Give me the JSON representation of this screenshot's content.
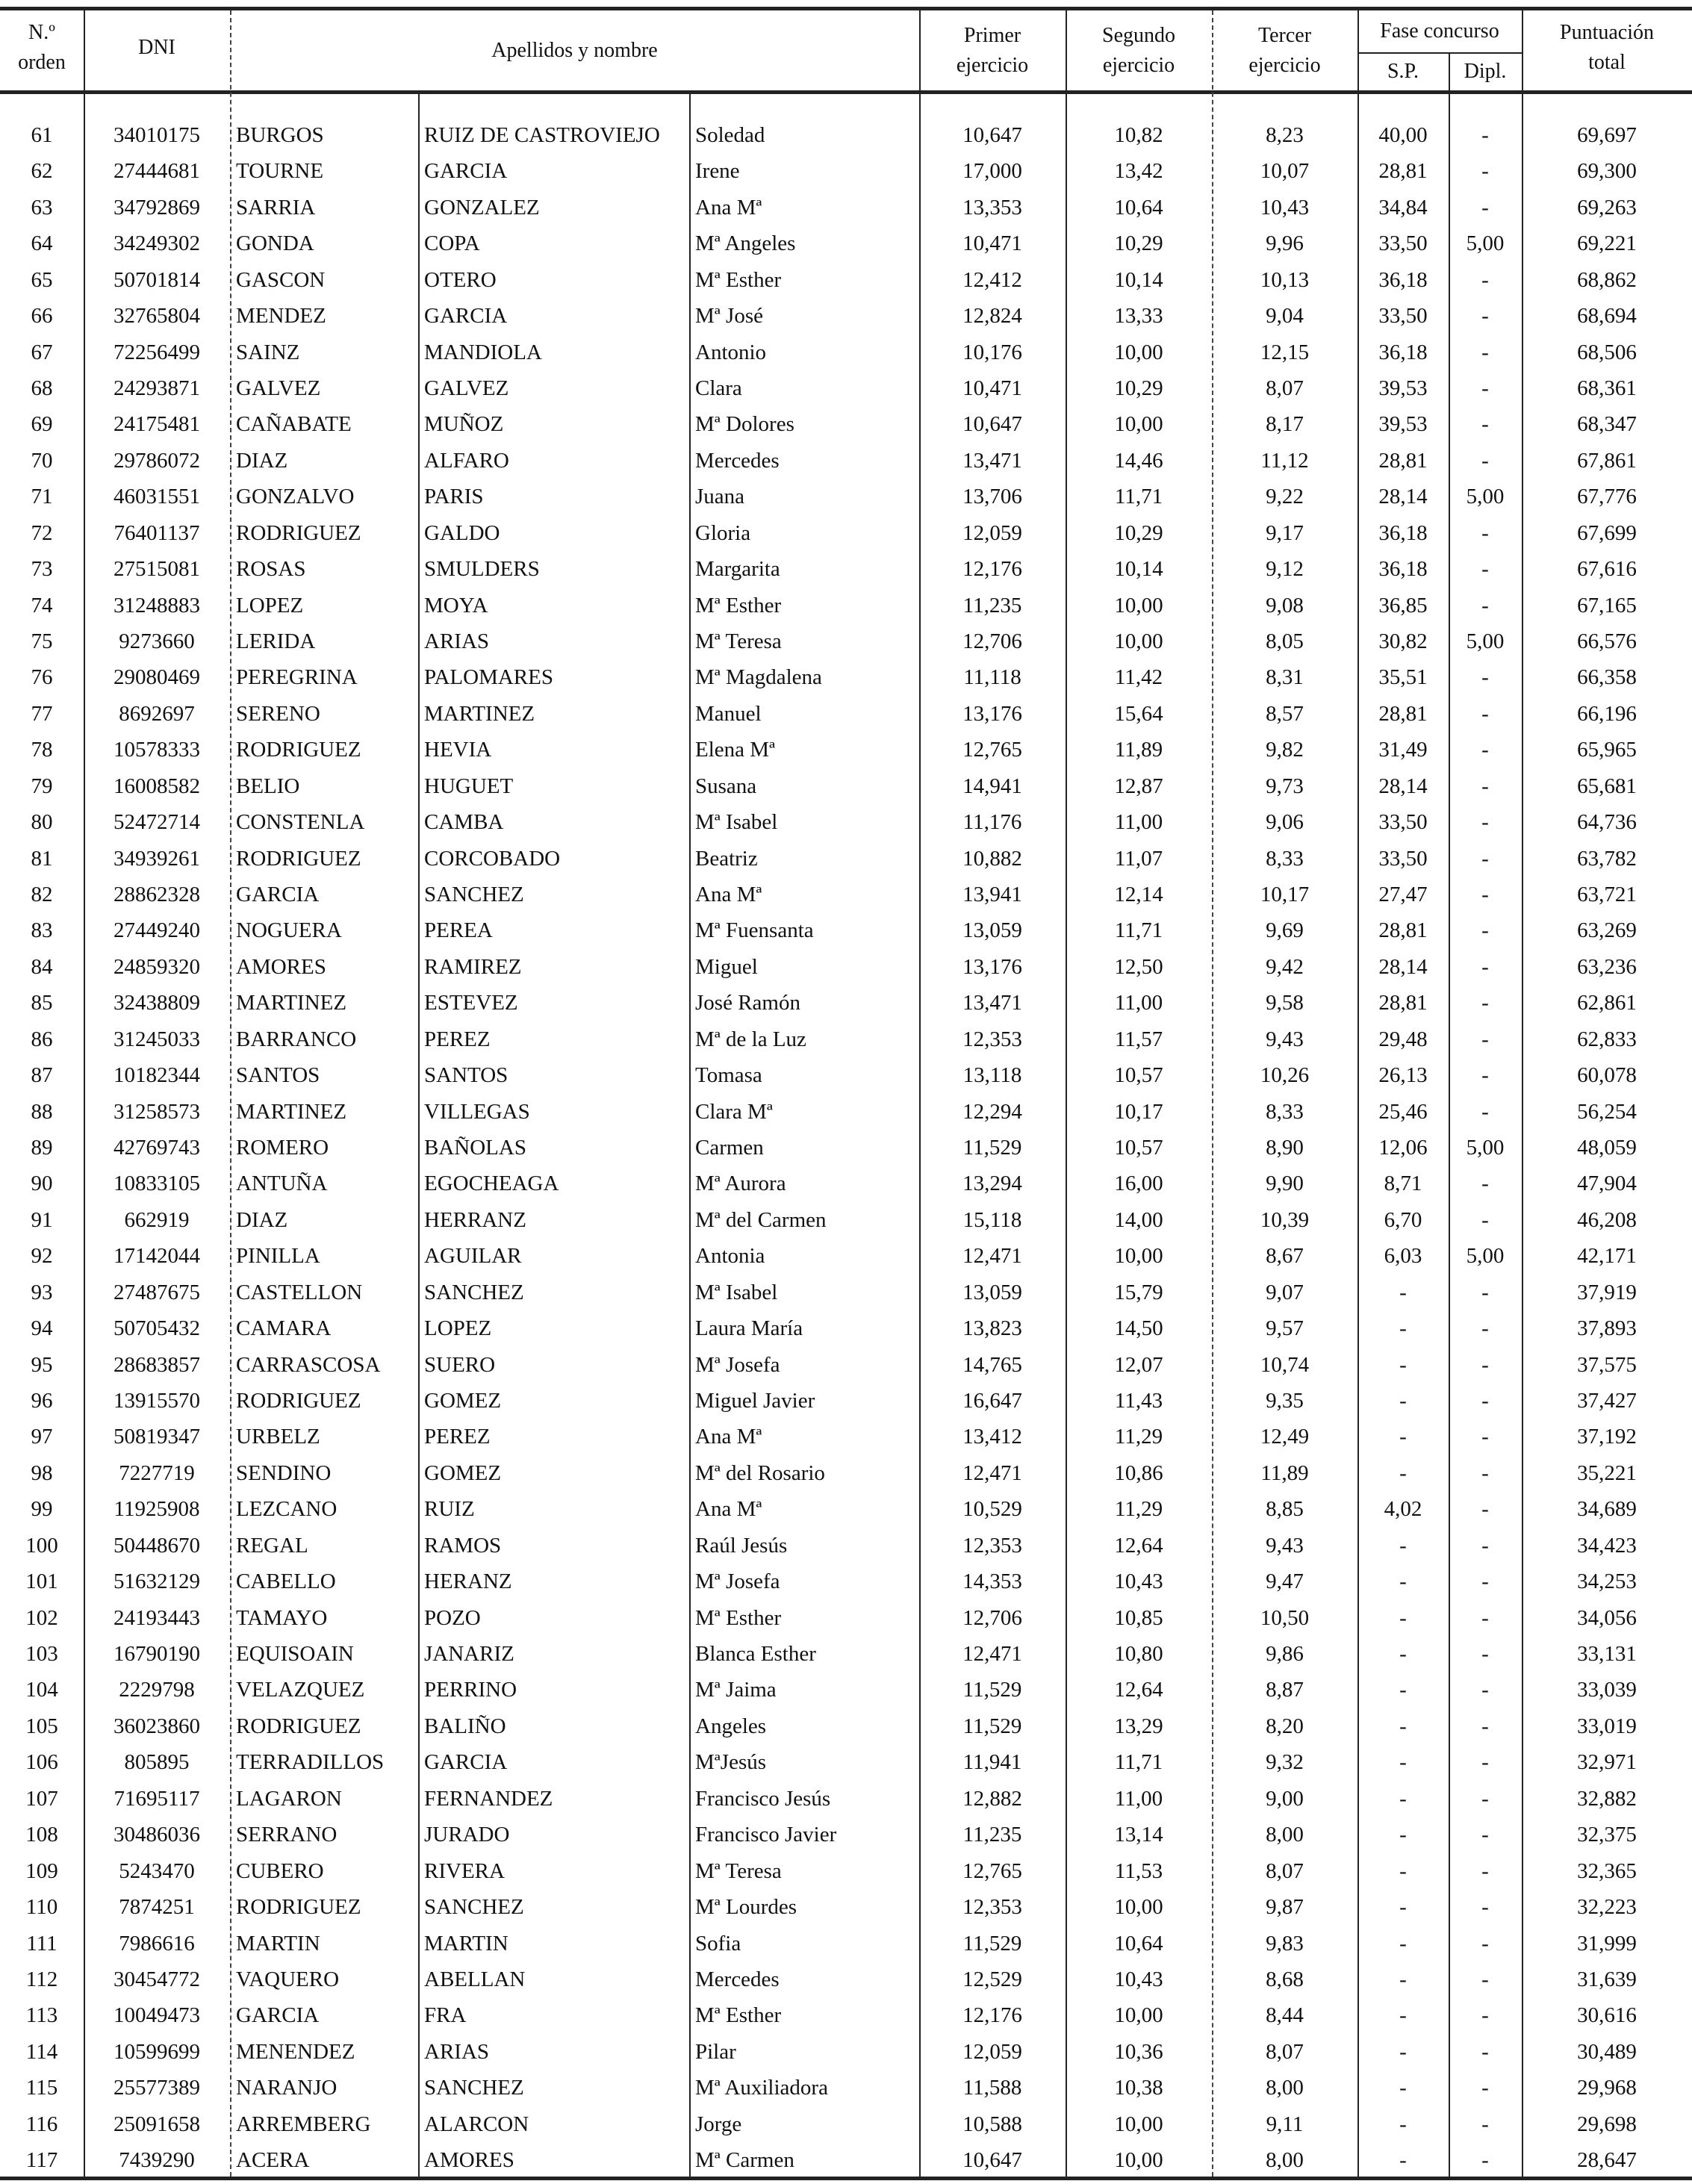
{
  "header": {
    "orden": [
      "N.º",
      "orden"
    ],
    "dni": "DNI",
    "nombre": "Apellidos y nombre",
    "primer": [
      "Primer",
      "ejercicio"
    ],
    "segundo": [
      "Segundo",
      "ejercicio"
    ],
    "tercer": [
      "Tercer",
      "ejercicio"
    ],
    "fase": "Fase concurso",
    "sp": "S.P.",
    "dipl": "Dipl.",
    "total": [
      "Puntuación",
      "total"
    ]
  },
  "rows": [
    [
      "61",
      "34010175",
      "BURGOS",
      "RUIZ DE CASTROVIEJO",
      "Soledad",
      "10,647",
      "10,82",
      "8,23",
      "40,00",
      "-",
      "69,697"
    ],
    [
      "62",
      "27444681",
      "TOURNE",
      "GARCIA",
      "Irene",
      "17,000",
      "13,42",
      "10,07",
      "28,81",
      "-",
      "69,300"
    ],
    [
      "63",
      "34792869",
      "SARRIA",
      "GONZALEZ",
      "Ana Mª",
      "13,353",
      "10,64",
      "10,43",
      "34,84",
      "-",
      "69,263"
    ],
    [
      "64",
      "34249302",
      "GONDA",
      "COPA",
      "Mª Angeles",
      "10,471",
      "10,29",
      "9,96",
      "33,50",
      "5,00",
      "69,221"
    ],
    [
      "65",
      "50701814",
      "GASCON",
      "OTERO",
      "Mª Esther",
      "12,412",
      "10,14",
      "10,13",
      "36,18",
      "-",
      "68,862"
    ],
    [
      "66",
      "32765804",
      "MENDEZ",
      "GARCIA",
      "Mª José",
      "12,824",
      "13,33",
      "9,04",
      "33,50",
      "-",
      "68,694"
    ],
    [
      "67",
      "72256499",
      "SAINZ",
      "MANDIOLA",
      "Antonio",
      "10,176",
      "10,00",
      "12,15",
      "36,18",
      "-",
      "68,506"
    ],
    [
      "68",
      "24293871",
      "GALVEZ",
      "GALVEZ",
      "Clara",
      "10,471",
      "10,29",
      "8,07",
      "39,53",
      "-",
      "68,361"
    ],
    [
      "69",
      "24175481",
      "CAÑABATE",
      "MUÑOZ",
      "Mª Dolores",
      "10,647",
      "10,00",
      "8,17",
      "39,53",
      "-",
      "68,347"
    ],
    [
      "70",
      "29786072",
      "DIAZ",
      "ALFARO",
      "Mercedes",
      "13,471",
      "14,46",
      "11,12",
      "28,81",
      "-",
      "67,861"
    ],
    [
      "71",
      "46031551",
      "GONZALVO",
      "PARIS",
      "Juana",
      "13,706",
      "11,71",
      "9,22",
      "28,14",
      "5,00",
      "67,776"
    ],
    [
      "72",
      "76401137",
      "RODRIGUEZ",
      "GALDO",
      "Gloria",
      "12,059",
      "10,29",
      "9,17",
      "36,18",
      "-",
      "67,699"
    ],
    [
      "73",
      "27515081",
      "ROSAS",
      "SMULDERS",
      "Margarita",
      "12,176",
      "10,14",
      "9,12",
      "36,18",
      "-",
      "67,616"
    ],
    [
      "74",
      "31248883",
      "LOPEZ",
      "MOYA",
      "Mª Esther",
      "11,235",
      "10,00",
      "9,08",
      "36,85",
      "-",
      "67,165"
    ],
    [
      "75",
      "9273660",
      "LERIDA",
      "ARIAS",
      "Mª Teresa",
      "12,706",
      "10,00",
      "8,05",
      "30,82",
      "5,00",
      "66,576"
    ],
    [
      "76",
      "29080469",
      "PEREGRINA",
      "PALOMARES",
      "Mª Magdalena",
      "11,118",
      "11,42",
      "8,31",
      "35,51",
      "-",
      "66,358"
    ],
    [
      "77",
      "8692697",
      "SERENO",
      "MARTINEZ",
      "Manuel",
      "13,176",
      "15,64",
      "8,57",
      "28,81",
      "-",
      "66,196"
    ],
    [
      "78",
      "10578333",
      "RODRIGUEZ",
      "HEVIA",
      "Elena Mª",
      "12,765",
      "11,89",
      "9,82",
      "31,49",
      "-",
      "65,965"
    ],
    [
      "79",
      "16008582",
      "BELIO",
      "HUGUET",
      "Susana",
      "14,941",
      "12,87",
      "9,73",
      "28,14",
      "-",
      "65,681"
    ],
    [
      "80",
      "52472714",
      "CONSTENLA",
      "CAMBA",
      "Mª Isabel",
      "11,176",
      "11,00",
      "9,06",
      "33,50",
      "-",
      "64,736"
    ],
    [
      "81",
      "34939261",
      "RODRIGUEZ",
      "CORCOBADO",
      "Beatriz",
      "10,882",
      "11,07",
      "8,33",
      "33,50",
      "-",
      "63,782"
    ],
    [
      "82",
      "28862328",
      "GARCIA",
      "SANCHEZ",
      "Ana Mª",
      "13,941",
      "12,14",
      "10,17",
      "27,47",
      "-",
      "63,721"
    ],
    [
      "83",
      "27449240",
      "NOGUERA",
      "PEREA",
      "Mª Fuensanta",
      "13,059",
      "11,71",
      "9,69",
      "28,81",
      "-",
      "63,269"
    ],
    [
      "84",
      "24859320",
      "AMORES",
      "RAMIREZ",
      "Miguel",
      "13,176",
      "12,50",
      "9,42",
      "28,14",
      "-",
      "63,236"
    ],
    [
      "85",
      "32438809",
      "MARTINEZ",
      "ESTEVEZ",
      "José Ramón",
      "13,471",
      "11,00",
      "9,58",
      "28,81",
      "-",
      "62,861"
    ],
    [
      "86",
      "31245033",
      "BARRANCO",
      "PEREZ",
      "Mª de la Luz",
      "12,353",
      "11,57",
      "9,43",
      "29,48",
      "-",
      "62,833"
    ],
    [
      "87",
      "10182344",
      "SANTOS",
      "SANTOS",
      "Tomasa",
      "13,118",
      "10,57",
      "10,26",
      "26,13",
      "-",
      "60,078"
    ],
    [
      "88",
      "31258573",
      "MARTINEZ",
      "VILLEGAS",
      "Clara Mª",
      "12,294",
      "10,17",
      "8,33",
      "25,46",
      "-",
      "56,254"
    ],
    [
      "89",
      "42769743",
      "ROMERO",
      "BAÑOLAS",
      "Carmen",
      "11,529",
      "10,57",
      "8,90",
      "12,06",
      "5,00",
      "48,059"
    ],
    [
      "90",
      "10833105",
      "ANTUÑA",
      "EGOCHEAGA",
      "Mª Aurora",
      "13,294",
      "16,00",
      "9,90",
      "8,71",
      "-",
      "47,904"
    ],
    [
      "91",
      "662919",
      "DIAZ",
      "HERRANZ",
      "Mª del Carmen",
      "15,118",
      "14,00",
      "10,39",
      "6,70",
      "-",
      "46,208"
    ],
    [
      "92",
      "17142044",
      "PINILLA",
      "AGUILAR",
      "Antonia",
      "12,471",
      "10,00",
      "8,67",
      "6,03",
      "5,00",
      "42,171"
    ],
    [
      "93",
      "27487675",
      "CASTELLON",
      "SANCHEZ",
      "Mª Isabel",
      "13,059",
      "15,79",
      "9,07",
      "-",
      "-",
      "37,919"
    ],
    [
      "94",
      "50705432",
      "CAMARA",
      "LOPEZ",
      "Laura María",
      "13,823",
      "14,50",
      "9,57",
      "-",
      "-",
      "37,893"
    ],
    [
      "95",
      "28683857",
      "CARRASCOSA",
      "SUERO",
      "Mª Josefa",
      "14,765",
      "12,07",
      "10,74",
      "-",
      "-",
      "37,575"
    ],
    [
      "96",
      "13915570",
      "RODRIGUEZ",
      "GOMEZ",
      "Miguel Javier",
      "16,647",
      "11,43",
      "9,35",
      "-",
      "-",
      "37,427"
    ],
    [
      "97",
      "50819347",
      "URBELZ",
      "PEREZ",
      "Ana Mª",
      "13,412",
      "11,29",
      "12,49",
      "-",
      "-",
      "37,192"
    ],
    [
      "98",
      "7227719",
      "SENDINO",
      "GOMEZ",
      "Mª del Rosario",
      "12,471",
      "10,86",
      "11,89",
      "-",
      "-",
      "35,221"
    ],
    [
      "99",
      "11925908",
      "LEZCANO",
      "RUIZ",
      "Ana Mª",
      "10,529",
      "11,29",
      "8,85",
      "4,02",
      "-",
      "34,689"
    ],
    [
      "100",
      "50448670",
      "REGAL",
      "RAMOS",
      "Raúl Jesús",
      "12,353",
      "12,64",
      "9,43",
      "-",
      "-",
      "34,423"
    ],
    [
      "101",
      "51632129",
      "CABELLO",
      "HERANZ",
      "Mª Josefa",
      "14,353",
      "10,43",
      "9,47",
      "-",
      "-",
      "34,253"
    ],
    [
      "102",
      "24193443",
      "TAMAYO",
      "POZO",
      "Mª Esther",
      "12,706",
      "10,85",
      "10,50",
      "-",
      "-",
      "34,056"
    ],
    [
      "103",
      "16790190",
      "EQUISOAIN",
      "JANARIZ",
      "Blanca Esther",
      "12,471",
      "10,80",
      "9,86",
      "-",
      "-",
      "33,131"
    ],
    [
      "104",
      "2229798",
      "VELAZQUEZ",
      "PERRINO",
      "Mª Jaima",
      "11,529",
      "12,64",
      "8,87",
      "-",
      "-",
      "33,039"
    ],
    [
      "105",
      "36023860",
      "RODRIGUEZ",
      "BALIÑO",
      "Angeles",
      "11,529",
      "13,29",
      "8,20",
      "-",
      "-",
      "33,019"
    ],
    [
      "106",
      "805895",
      "TERRADILLOS",
      "GARCIA",
      "MªJesús",
      "11,941",
      "11,71",
      "9,32",
      "-",
      "-",
      "32,971"
    ],
    [
      "107",
      "71695117",
      "LAGARON",
      "FERNANDEZ",
      "Francisco Jesús",
      "12,882",
      "11,00",
      "9,00",
      "-",
      "-",
      "32,882"
    ],
    [
      "108",
      "30486036",
      "SERRANO",
      "JURADO",
      "Francisco Javier",
      "11,235",
      "13,14",
      "8,00",
      "-",
      "-",
      "32,375"
    ],
    [
      "109",
      "5243470",
      "CUBERO",
      "RIVERA",
      "Mª Teresa",
      "12,765",
      "11,53",
      "8,07",
      "-",
      "-",
      "32,365"
    ],
    [
      "110",
      "7874251",
      "RODRIGUEZ",
      "SANCHEZ",
      "Mª Lourdes",
      "12,353",
      "10,00",
      "9,87",
      "-",
      "-",
      "32,223"
    ],
    [
      "111",
      "7986616",
      "MARTIN",
      "MARTIN",
      "Sofia",
      "11,529",
      "10,64",
      "9,83",
      "-",
      "-",
      "31,999"
    ],
    [
      "112",
      "30454772",
      "VAQUERO",
      "ABELLAN",
      "Mercedes",
      "12,529",
      "10,43",
      "8,68",
      "-",
      "-",
      "31,639"
    ],
    [
      "113",
      "10049473",
      "GARCIA",
      "FRA",
      "Mª Esther",
      "12,176",
      "10,00",
      "8,44",
      "-",
      "-",
      "30,616"
    ],
    [
      "114",
      "10599699",
      "MENENDEZ",
      "ARIAS",
      "Pilar",
      "12,059",
      "10,36",
      "8,07",
      "-",
      "-",
      "30,489"
    ],
    [
      "115",
      "25577389",
      "NARANJO",
      "SANCHEZ",
      "Mª Auxiliadora",
      "11,588",
      "10,38",
      "8,00",
      "-",
      "-",
      "29,968"
    ],
    [
      "116",
      "25091658",
      "ARREMBERG",
      "ALARCON",
      "Jorge",
      "10,588",
      "10,00",
      "9,11",
      "-",
      "-",
      "29,698"
    ],
    [
      "117",
      "7439290",
      "ACERA",
      "AMORES",
      "Mª Carmen",
      "10,647",
      "10,00",
      "8,00",
      "-",
      "-",
      "28,647"
    ]
  ]
}
